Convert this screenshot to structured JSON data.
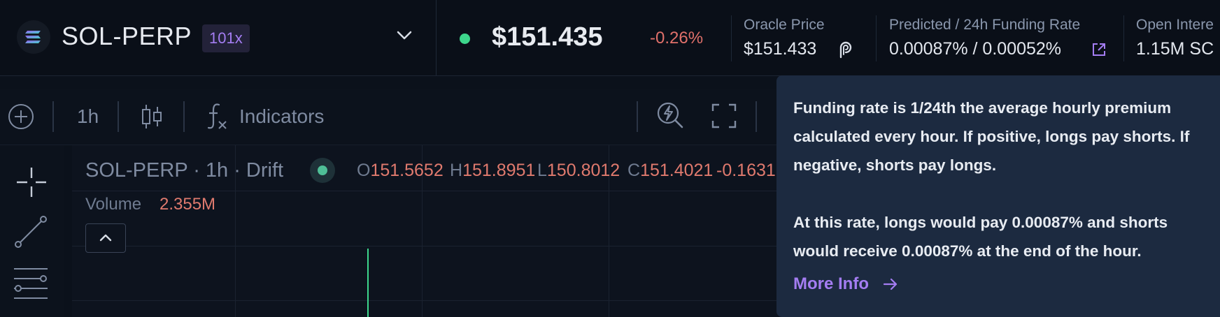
{
  "market": {
    "name": "SOL-PERP",
    "leverage": "101x",
    "price": "$151.435",
    "change": "-0.26%"
  },
  "stats": {
    "oracle": {
      "label": "Oracle Price",
      "value": "$151.433"
    },
    "funding": {
      "label": "Predicted / 24h Funding Rate",
      "value": "0.00087% / 0.00052%"
    },
    "open_interest": {
      "label": "Open Intere",
      "value": "1.15M SC"
    }
  },
  "toolbar": {
    "interval": "1h",
    "indicators": "Indicators"
  },
  "chart": {
    "legend_title": "SOL-PERP · 1h · Drift",
    "ohlc": {
      "o_key": "O",
      "o_val": "151.5652",
      "h_key": "H",
      "h_val": "151.8951",
      "l_key": "L",
      "l_val": "150.8012",
      "c_key": "C",
      "c_val": "151.4021",
      "change": "-0.1631"
    },
    "volume_label": "Volume",
    "volume_value": "2.355M"
  },
  "tooltip": {
    "p1": "Funding rate is 1/24th the average hourly premium calculated every hour. If positive, longs pay shorts. If negative, shorts pay longs.",
    "p2": "At this rate, longs would pay 0.00087% and shorts would receive 0.00087% at the end of the hour.",
    "more_info": "More Info"
  },
  "colors": {
    "accent_purple": "#a47df2",
    "positive_green": "#3dd68c",
    "negative_red": "#e0706a",
    "background": "#0b111b",
    "tooltip_bg": "#1c2a40"
  },
  "icons": {
    "logo": "solana-logo-icon",
    "market_dropdown": "chevron-down-icon",
    "oracle": "pyth-icon",
    "funding_link": "external-link-icon",
    "add": "plus-circle-icon",
    "chart_type": "candlestick-icon",
    "indicators": "function-icon",
    "quick_search": "lightning-search-icon",
    "fullscreen": "fullscreen-icon",
    "crosshair": "crosshair-icon",
    "trendline": "trend-line-icon",
    "fib": "fib-retracement-icon",
    "collapse": "chevron-up-icon",
    "more_info": "arrow-right-icon"
  }
}
